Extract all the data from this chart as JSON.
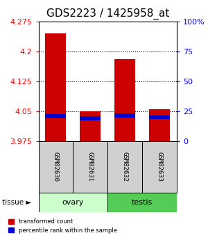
{
  "title": "GDS2223 / 1425958_at",
  "samples": [
    "GSM82630",
    "GSM82631",
    "GSM82632",
    "GSM82633"
  ],
  "y_min": 3.975,
  "y_max": 4.275,
  "y_ticks": [
    3.975,
    4.05,
    4.125,
    4.2,
    4.275
  ],
  "y_ticks_right": [
    0,
    25,
    50,
    75,
    100
  ],
  "red_tops": [
    4.245,
    4.05,
    4.18,
    4.055
  ],
  "red_bottoms": [
    3.975,
    3.975,
    3.975,
    3.975
  ],
  "blue_tops": [
    4.043,
    4.038,
    4.044,
    4.04
  ],
  "blue_bottoms": [
    4.033,
    4.028,
    4.034,
    4.03
  ],
  "bar_width": 0.6,
  "red_color": "#cc0000",
  "blue_color": "#0000cc",
  "title_fontsize": 11,
  "tick_fontsize": 8,
  "group_spans": [
    [
      0,
      1,
      "ovary",
      "#ccffcc"
    ],
    [
      2,
      3,
      "testis",
      "#55cc55"
    ]
  ],
  "tissue_label": "tissue ►",
  "legend_labels": [
    "transformed count",
    "percentile rank within the sample"
  ]
}
